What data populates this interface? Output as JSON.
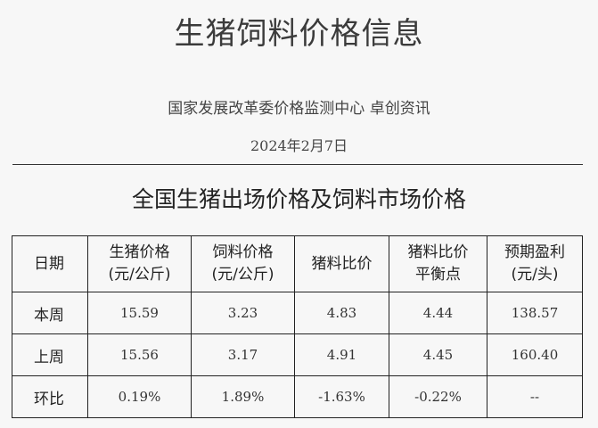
{
  "title": "生猪饲料价格信息",
  "subtitle": "国家发展改革委价格监测中心  卓创资讯",
  "date": "2024年2月7日",
  "section_title": "全国生猪出场价格及饲料市场价格",
  "table": {
    "headers": [
      {
        "line1": "日期",
        "line2": ""
      },
      {
        "line1": "生猪价格",
        "line2": "(元/公斤)"
      },
      {
        "line1": "饲料价格",
        "line2": "(元/公斤)"
      },
      {
        "line1": "猪料比价",
        "line2": ""
      },
      {
        "line1": "猪料比价",
        "line2": "平衡点"
      },
      {
        "line1": "预期盈利",
        "line2": "(元/头)"
      }
    ],
    "rows": [
      [
        "本周",
        "15.59",
        "3.23",
        "4.83",
        "4.44",
        "138.57"
      ],
      [
        "上周",
        "15.56",
        "3.17",
        "4.91",
        "4.45",
        "160.40"
      ],
      [
        "环比",
        "0.19%",
        "1.89%",
        "-1.63%",
        "-0.22%",
        "--"
      ]
    ]
  }
}
